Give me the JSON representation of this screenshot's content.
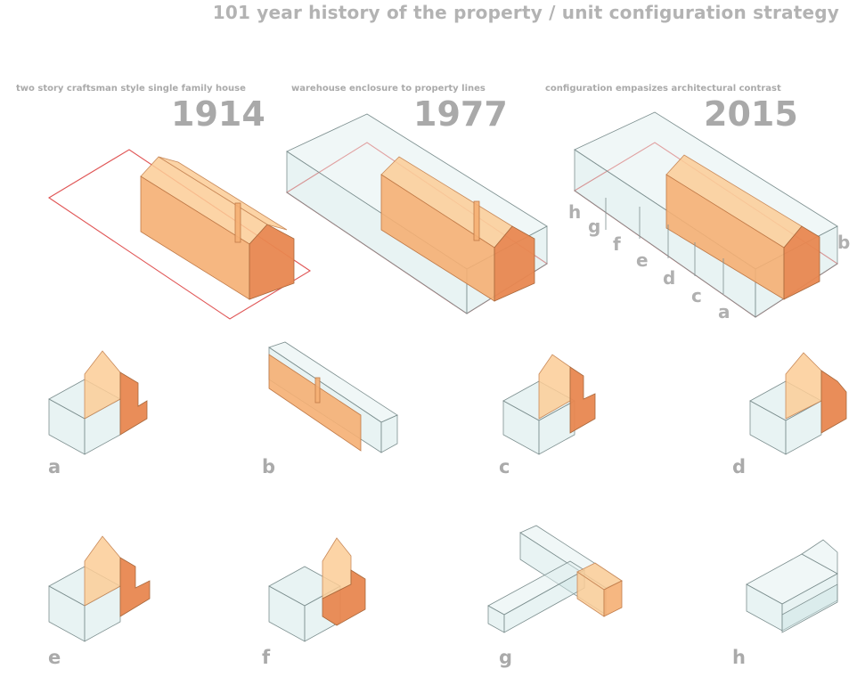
{
  "title": "101 year history of the property / unit configuration strategy",
  "phases": [
    {
      "caption": "two story craftsman style single family house",
      "year": "1914"
    },
    {
      "caption": "warehouse enclosure to property lines",
      "year": "1977"
    },
    {
      "caption": "configuration empasizes architectural contrast",
      "year": "2015"
    }
  ],
  "plan_unit_markers": [
    "h",
    "g",
    "f",
    "e",
    "d",
    "c",
    "a",
    "b"
  ],
  "units": [
    "a",
    "b",
    "c",
    "d",
    "e",
    "f",
    "g",
    "h"
  ],
  "colors": {
    "title_text": "#b3b3b3",
    "existing_house": "#f5af73",
    "new_volume_glass": "#cde4e4",
    "property_line": "#e05555"
  }
}
